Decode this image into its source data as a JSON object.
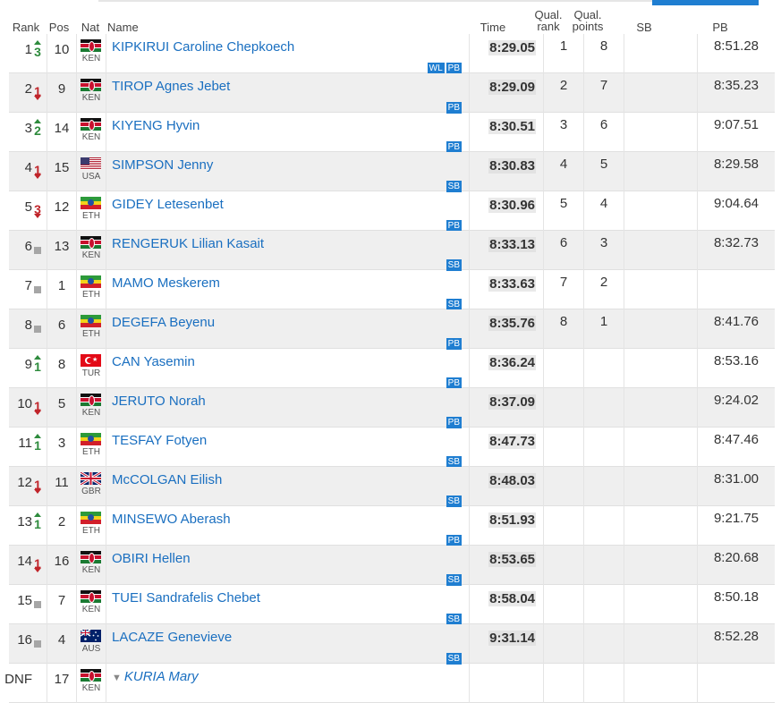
{
  "headers": {
    "rank": "Rank",
    "pos": "Pos",
    "nat": "Nat",
    "name": "Name",
    "time": "Time",
    "qual_rank_1": "Qual.",
    "qual_rank_2": "rank",
    "qual_points_1": "Qual.",
    "qual_points_2": "points",
    "sb": "SB",
    "pb": "PB"
  },
  "rows": [
    {
      "rank": "1",
      "move": "up",
      "move_n": "3",
      "pos": "10",
      "nat": "KEN",
      "name": "KIPKIRUI Caroline Chepkoech",
      "badges": [
        "WL",
        "PB"
      ],
      "time": "8:29.05",
      "qrank": "1",
      "qpts": "8",
      "sb": "",
      "pb": "8:51.28"
    },
    {
      "rank": "2",
      "move": "down",
      "move_n": "1",
      "pos": "9",
      "nat": "KEN",
      "name": "TIROP Agnes Jebet",
      "badges": [
        "PB"
      ],
      "time": "8:29.09",
      "qrank": "2",
      "qpts": "7",
      "sb": "",
      "pb": "8:35.23"
    },
    {
      "rank": "3",
      "move": "up",
      "move_n": "2",
      "pos": "14",
      "nat": "KEN",
      "name": "KIYENG Hyvin",
      "badges": [
        "PB"
      ],
      "time": "8:30.51",
      "qrank": "3",
      "qpts": "6",
      "sb": "",
      "pb": "9:07.51"
    },
    {
      "rank": "4",
      "move": "down",
      "move_n": "1",
      "pos": "15",
      "nat": "USA",
      "name": "SIMPSON Jenny",
      "badges": [
        "SB"
      ],
      "time": "8:30.83",
      "qrank": "4",
      "qpts": "5",
      "sb": "",
      "pb": "8:29.58"
    },
    {
      "rank": "5",
      "move": "down",
      "move_n": "3",
      "pos": "12",
      "nat": "ETH",
      "name": "GIDEY Letesenbet",
      "badges": [
        "PB"
      ],
      "time": "8:30.96",
      "qrank": "5",
      "qpts": "4",
      "sb": "",
      "pb": "9:04.64"
    },
    {
      "rank": "6",
      "move": "same",
      "move_n": "",
      "pos": "13",
      "nat": "KEN",
      "name": "RENGERUK Lilian Kasait",
      "badges": [
        "SB"
      ],
      "time": "8:33.13",
      "qrank": "6",
      "qpts": "3",
      "sb": "",
      "pb": "8:32.73"
    },
    {
      "rank": "7",
      "move": "same",
      "move_n": "",
      "pos": "1",
      "nat": "ETH",
      "name": "MAMO Meskerem",
      "badges": [
        "SB"
      ],
      "time": "8:33.63",
      "qrank": "7",
      "qpts": "2",
      "sb": "",
      "pb": ""
    },
    {
      "rank": "8",
      "move": "same",
      "move_n": "",
      "pos": "6",
      "nat": "ETH",
      "name": "DEGEFA Beyenu",
      "badges": [
        "PB"
      ],
      "time": "8:35.76",
      "qrank": "8",
      "qpts": "1",
      "sb": "",
      "pb": "8:41.76"
    },
    {
      "rank": "9",
      "move": "up",
      "move_n": "1",
      "pos": "8",
      "nat": "TUR",
      "name": "CAN Yasemin",
      "badges": [
        "PB"
      ],
      "time": "8:36.24",
      "qrank": "",
      "qpts": "",
      "sb": "",
      "pb": "8:53.16"
    },
    {
      "rank": "10",
      "move": "down",
      "move_n": "1",
      "pos": "5",
      "nat": "KEN",
      "name": "JERUTO Norah",
      "badges": [
        "PB"
      ],
      "time": "8:37.09",
      "qrank": "",
      "qpts": "",
      "sb": "",
      "pb": "9:24.02"
    },
    {
      "rank": "11",
      "move": "up",
      "move_n": "1",
      "pos": "3",
      "nat": "ETH",
      "name": "TESFAY Fotyen",
      "badges": [
        "SB"
      ],
      "time": "8:47.73",
      "qrank": "",
      "qpts": "",
      "sb": "",
      "pb": "8:47.46"
    },
    {
      "rank": "12",
      "move": "down",
      "move_n": "1",
      "pos": "11",
      "nat": "GBR",
      "name": "McCOLGAN Eilish",
      "badges": [
        "SB"
      ],
      "time": "8:48.03",
      "qrank": "",
      "qpts": "",
      "sb": "",
      "pb": "8:31.00"
    },
    {
      "rank": "13",
      "move": "up",
      "move_n": "1",
      "pos": "2",
      "nat": "ETH",
      "name": "MINSEWO Aberash",
      "badges": [
        "PB"
      ],
      "time": "8:51.93",
      "qrank": "",
      "qpts": "",
      "sb": "",
      "pb": "9:21.75"
    },
    {
      "rank": "14",
      "move": "down",
      "move_n": "1",
      "pos": "16",
      "nat": "KEN",
      "name": "OBIRI Hellen",
      "badges": [
        "SB"
      ],
      "time": "8:53.65",
      "qrank": "",
      "qpts": "",
      "sb": "",
      "pb": "8:20.68"
    },
    {
      "rank": "15",
      "move": "same",
      "move_n": "",
      "pos": "7",
      "nat": "KEN",
      "name": "TUEI Sandrafelis Chebet",
      "badges": [
        "SB"
      ],
      "time": "8:58.04",
      "qrank": "",
      "qpts": "",
      "sb": "",
      "pb": "8:50.18"
    },
    {
      "rank": "16",
      "move": "same",
      "move_n": "",
      "pos": "4",
      "nat": "AUS",
      "name": "LACAZE Genevieve",
      "badges": [
        "SB"
      ],
      "time": "9:31.14",
      "qrank": "",
      "qpts": "",
      "sb": "",
      "pb": "8:52.28"
    },
    {
      "rank": "DNF",
      "move": "none",
      "move_n": "",
      "pos": "17",
      "nat": "KEN",
      "name": "KURIA Mary",
      "badges": [],
      "time": "",
      "qrank": "",
      "qpts": "",
      "sb": "",
      "pb": ""
    }
  ],
  "colors": {
    "accent": "#1f7ed1",
    "link": "#1a6fc0",
    "up": "#2e8b3d",
    "down": "#c0242a",
    "row_alt": "#efefef"
  },
  "icons": {
    "up": "triangle-up-icon",
    "down": "triangle-down-icon",
    "same": "square-icon",
    "dnf": "runner-icon"
  }
}
